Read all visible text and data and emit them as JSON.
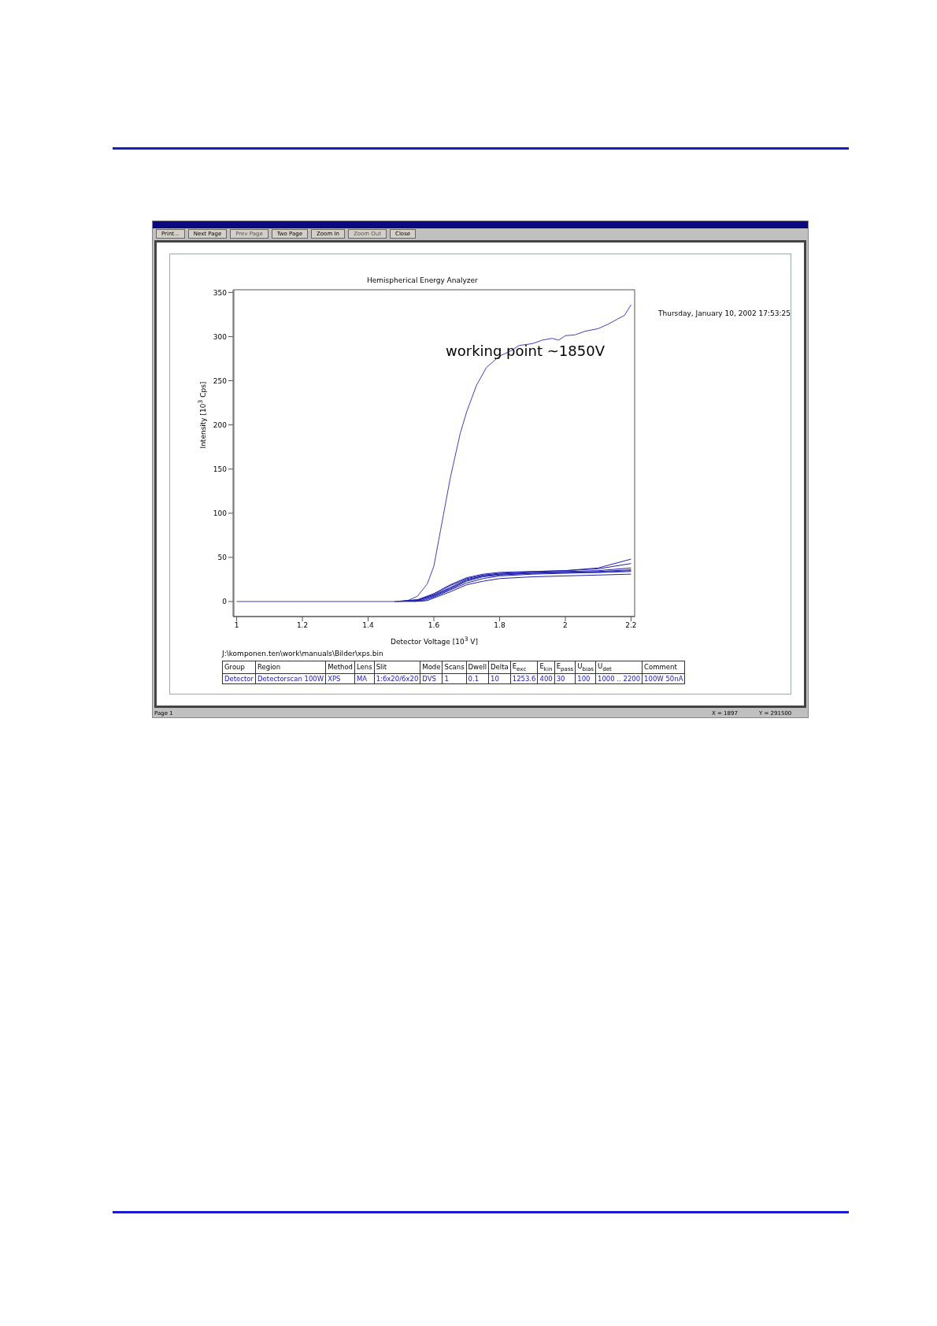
{
  "chart_data": {
    "type": "line",
    "title": "Hemispherical Energy Analyzer",
    "xlabel": "Detector Voltage [10$^{3}$ V]",
    "ylabel": "Intensity [10$^{3}$ Cps]",
    "xlim": [
      0.989,
      2.211
    ],
    "xticks": [
      1,
      1.2,
      1.4,
      1.6,
      1.8,
      2,
      2.2
    ],
    "ylim": [
      -17,
      353
    ],
    "yticks": [
      0,
      50,
      100,
      150,
      200,
      250,
      300,
      350
    ],
    "grid": false,
    "marker": "none",
    "line_style": "solid",
    "series": [
      {
        "color": "#4040c0",
        "x": [
          1,
          1.5,
          1.52,
          1.55,
          1.58,
          1.6,
          1.62,
          1.65,
          1.68,
          1.7,
          1.73,
          1.76,
          1.8,
          1.83,
          1.86,
          1.9,
          1.93,
          1.96,
          1.98,
          2.0,
          2.03,
          2.06,
          2.1,
          2.13,
          2.16,
          2.18,
          2.2
        ],
        "values": [
          0,
          0,
          1,
          6,
          20,
          40,
          80,
          140,
          190,
          215,
          245,
          265,
          278,
          283,
          290,
          292,
          296,
          298,
          296,
          301,
          302,
          306,
          309,
          314,
          320,
          324,
          336
        ]
      },
      {
        "color": "#2020b0",
        "x": [
          1.48,
          1.55,
          1.6,
          1.65,
          1.7,
          1.75,
          1.8,
          1.9,
          2.0,
          2.1,
          2.2
        ],
        "values": [
          0,
          2,
          9,
          19,
          27,
          31,
          33,
          34,
          35,
          38,
          48
        ]
      },
      {
        "color": "#2020b0",
        "x": [
          1.49,
          1.55,
          1.6,
          1.65,
          1.7,
          1.75,
          1.8,
          1.9,
          2.0,
          2.1,
          2.2
        ],
        "values": [
          0,
          2,
          8,
          18,
          26,
          30,
          32,
          34,
          35,
          37,
          43
        ]
      },
      {
        "color": "#2020b0",
        "x": [
          1.5,
          1.55,
          1.6,
          1.65,
          1.7,
          1.75,
          1.8,
          1.9,
          2.0,
          2.1,
          2.2
        ],
        "values": [
          0,
          1,
          7,
          16,
          25,
          29,
          31,
          33,
          34,
          35,
          38
        ]
      },
      {
        "color": "#2020b0",
        "x": [
          1.51,
          1.55,
          1.6,
          1.65,
          1.7,
          1.75,
          1.8,
          1.9,
          2.0,
          2.1,
          2.2
        ],
        "values": [
          0,
          1,
          7,
          15,
          24,
          29,
          31,
          32,
          33,
          34,
          36
        ]
      },
      {
        "color": "#2020b0",
        "x": [
          1.52,
          1.56,
          1.6,
          1.65,
          1.7,
          1.75,
          1.8,
          1.9,
          2.0,
          2.1,
          2.2
        ],
        "values": [
          0,
          1,
          6,
          14,
          23,
          28,
          30,
          32,
          33,
          33,
          35
        ]
      },
      {
        "color": "#2020b0",
        "x": [
          1.53,
          1.57,
          1.6,
          1.65,
          1.7,
          1.75,
          1.8,
          1.9,
          2.0,
          2.1,
          2.2
        ],
        "values": [
          0,
          1,
          5,
          13,
          21,
          26,
          29,
          31,
          32,
          33,
          34
        ]
      },
      {
        "color": "#2020b0",
        "x": [
          1.54,
          1.58,
          1.6,
          1.65,
          1.7,
          1.75,
          1.8,
          1.9,
          2.0,
          2.1,
          2.2
        ],
        "values": [
          0,
          1,
          4,
          11,
          19,
          23,
          26,
          28,
          29,
          30,
          31
        ]
      }
    ],
    "annotations": [
      "working point ~1850V",
      "Thursday, January 10, 2002 17:53:25",
      "J:\\komponen.ten\\work\\manuals\\Bilder\\xps.bin",
      "Print...",
      "Next Page",
      "Prev Page",
      "Two Page",
      "Zoom In",
      "Zoom Out",
      "Close",
      "Page 1",
      "X = 1897",
      "Y = 291500",
      "Group",
      "Region",
      "Method",
      "Lens",
      "Slit",
      "Mode",
      "Scans",
      "Dwell",
      "Delta",
      "E$_{exc}$",
      "E$_{kin}$",
      "E$_{pass}$",
      "U$_{bias}$",
      "U$_{det}$",
      "Comment",
      "Detector",
      "Detectorscan 100W",
      "XPS",
      "MA",
      "1:6x20/6x20",
      "DVS",
      "1",
      "0.1",
      "10",
      "1253.6",
      "400",
      "30",
      "100",
      "1000 .. 2200",
      "100W 50nA"
    ]
  }
}
